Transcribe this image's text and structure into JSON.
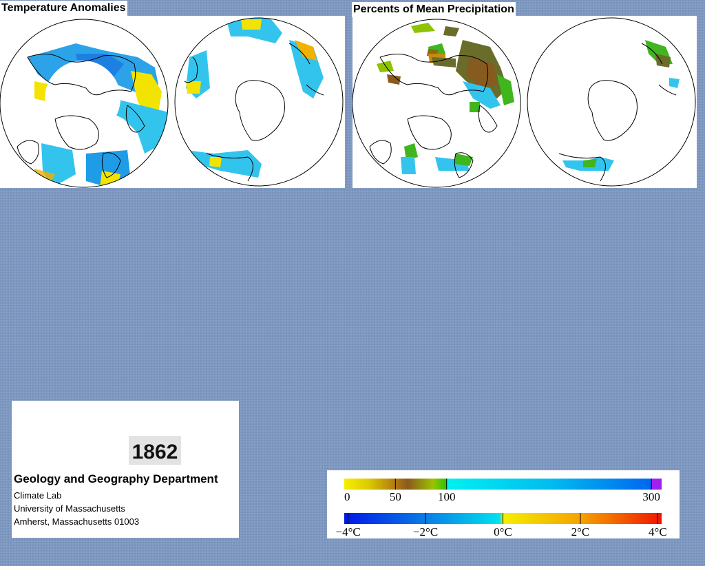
{
  "panels": {
    "temperature": {
      "title": "Temperature Anomalies"
    },
    "precipitation": {
      "title": "Percents of Mean Precipitation"
    }
  },
  "info": {
    "year": "1862",
    "department": "Geology and Geography Department",
    "lines": [
      "Climate Lab",
      "University of Massachusetts",
      "Amherst, Massachusetts 01003"
    ]
  },
  "legend": {
    "precipitation": {
      "unit": "percent of mean",
      "tick_labels": [
        "0",
        "50",
        "100",
        "300"
      ],
      "tick_values": [
        0,
        50,
        100,
        300
      ],
      "colors": [
        "#f7f000",
        "#c8a300",
        "#8b5a1e",
        "#8fc200",
        "#2fc400",
        "#00e8ef",
        "#00a8ef",
        "#0064ef",
        "#a31ff0"
      ]
    },
    "temperature": {
      "unit": "°C",
      "tick_labels": [
        "−4°C",
        "−2°C",
        "0°C",
        "2°C",
        "4°C"
      ],
      "tick_values": [
        -4,
        -2,
        0,
        2,
        4
      ],
      "colors": [
        "#0018e8",
        "#0a7ae6",
        "#00e2ef",
        "#f4ef00",
        "#f5a000",
        "#ef1500"
      ]
    }
  },
  "colors": {
    "background": "#7d98c1",
    "cold": "#1e9ce8",
    "cool": "#33c4ee",
    "warm": "#f2e400",
    "dry": "#c88a10",
    "wet": "#3fb51e",
    "very_wet": "#6a6c2a"
  }
}
